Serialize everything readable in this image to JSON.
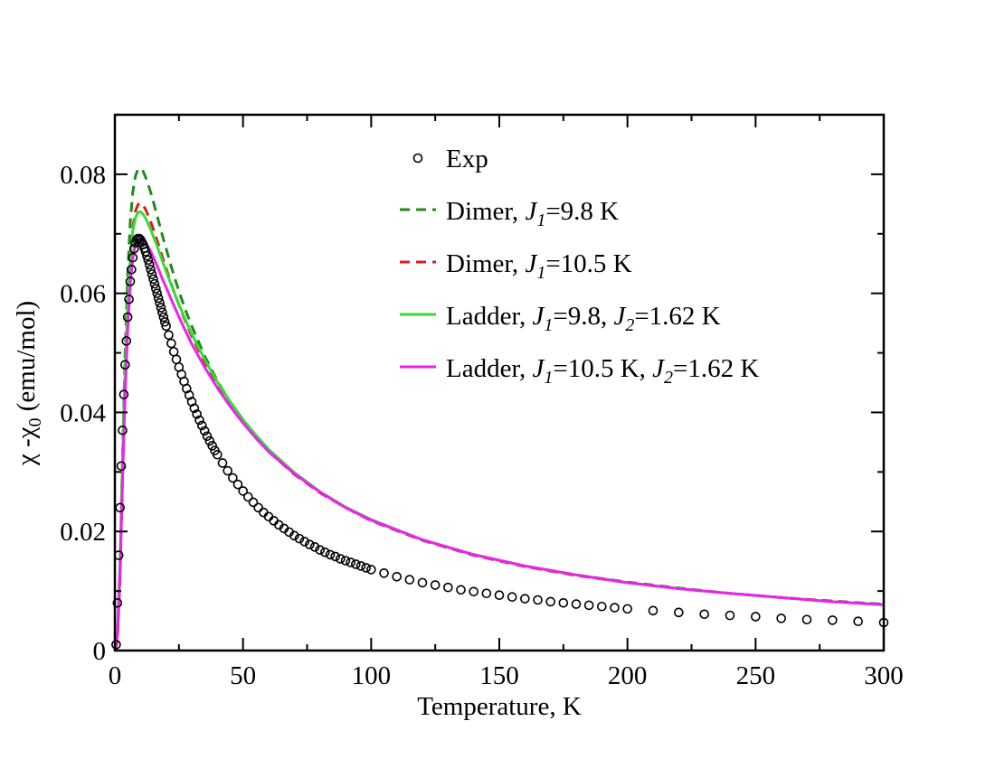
{
  "chart_data": {
    "type": "line",
    "title": "",
    "xlabel": "Temperature, K",
    "ylabel": {
      "main": "χ -χ",
      "sub": "0",
      "unit": " (emu/mol)"
    },
    "xlim": [
      0,
      300
    ],
    "ylim": [
      0,
      0.09
    ],
    "xticks": [
      0,
      50,
      100,
      150,
      200,
      250,
      300
    ],
    "xtick_labels": [
      "0",
      "50",
      "100",
      "150",
      "200",
      "250",
      "300"
    ],
    "yticks": [
      0,
      0.02,
      0.04,
      0.06,
      0.08
    ],
    "ytick_labels": [
      "0",
      "0.02",
      "0.04",
      "0.06",
      "0.08"
    ],
    "legend_position": "top-right",
    "series": [
      {
        "name": "Exp",
        "label": "Exp",
        "style": "markers",
        "color": "#000000",
        "x": [
          0.5,
          1,
          1.5,
          2,
          2.5,
          3,
          3.5,
          4,
          4.5,
          5,
          5.5,
          6,
          6.5,
          7,
          7.5,
          8,
          8.5,
          9,
          9.5,
          10,
          10.5,
          11,
          11.5,
          12,
          12.5,
          13,
          13.5,
          14,
          14.5,
          15,
          15.5,
          16,
          16.5,
          17,
          17.5,
          18,
          18.5,
          19,
          19.5,
          20,
          21,
          22,
          23,
          24,
          25,
          26,
          27,
          28,
          29,
          30,
          31,
          32,
          33,
          34,
          35,
          36,
          37,
          38,
          39,
          40,
          42,
          44,
          46,
          48,
          50,
          52,
          54,
          56,
          58,
          60,
          62,
          64,
          66,
          68,
          70,
          72,
          74,
          76,
          78,
          80,
          82,
          84,
          86,
          88,
          90,
          92,
          94,
          96,
          98,
          100,
          105,
          110,
          115,
          120,
          125,
          130,
          135,
          140,
          145,
          150,
          155,
          160,
          165,
          170,
          175,
          180,
          185,
          190,
          195,
          200,
          210,
          220,
          230,
          240,
          250,
          260,
          270,
          280,
          290,
          300
        ],
        "y": [
          0.001,
          0.008,
          0.016,
          0.024,
          0.031,
          0.037,
          0.043,
          0.048,
          0.052,
          0.056,
          0.059,
          0.062,
          0.064,
          0.066,
          0.0675,
          0.0685,
          0.069,
          0.0692,
          0.0692,
          0.069,
          0.0686,
          0.0682,
          0.0676,
          0.067,
          0.0663,
          0.0656,
          0.0648,
          0.064,
          0.0632,
          0.0624,
          0.0616,
          0.0608,
          0.06,
          0.0592,
          0.0584,
          0.0576,
          0.0568,
          0.056,
          0.0552,
          0.0545,
          0.053,
          0.0516,
          0.0502,
          0.0489,
          0.0476,
          0.0464,
          0.0452,
          0.044,
          0.0429,
          0.0418,
          0.0407,
          0.0397,
          0.0387,
          0.0378,
          0.0369,
          0.036,
          0.0352,
          0.0344,
          0.0336,
          0.0329,
          0.0315,
          0.0302,
          0.029,
          0.0279,
          0.0268,
          0.0258,
          0.0249,
          0.024,
          0.0232,
          0.0225,
          0.0218,
          0.0211,
          0.0205,
          0.0199,
          0.0193,
          0.0188,
          0.0183,
          0.0178,
          0.0174,
          0.0169,
          0.0165,
          0.0161,
          0.0158,
          0.0154,
          0.0151,
          0.0148,
          0.0145,
          0.0142,
          0.0139,
          0.0136,
          0.013,
          0.0124,
          0.0119,
          0.0114,
          0.011,
          0.0106,
          0.0102,
          0.0099,
          0.0096,
          0.0093,
          0.009,
          0.0087,
          0.0085,
          0.0082,
          0.008,
          0.0078,
          0.0076,
          0.0074,
          0.0072,
          0.007,
          0.0067,
          0.0064,
          0.0061,
          0.0059,
          0.0057,
          0.0054,
          0.0052,
          0.0051,
          0.0049,
          0.0047
        ]
      },
      {
        "name": "dimer-9.8",
        "label_parts": [
          "Dimer, ",
          "J",
          "1",
          "=9.8 K"
        ],
        "style": "dashed",
        "color": "#1e8b1e",
        "x": [
          0,
          1,
          2,
          3,
          4,
          5,
          6,
          7,
          8,
          9,
          10,
          11,
          12,
          13,
          14,
          15,
          16,
          17,
          18,
          19,
          20,
          22,
          24,
          26,
          28,
          30,
          35,
          40,
          45,
          50,
          55,
          60,
          70,
          80,
          90,
          100,
          120,
          140,
          160,
          180,
          200,
          220,
          240,
          260,
          280,
          300
        ],
        "y": [
          0.0,
          0.002,
          0.014,
          0.033,
          0.05,
          0.063,
          0.072,
          0.077,
          0.0797,
          0.0808,
          0.081,
          0.0805,
          0.0795,
          0.0783,
          0.0769,
          0.0754,
          0.0738,
          0.0722,
          0.0706,
          0.069,
          0.0675,
          0.0645,
          0.0617,
          0.0591,
          0.0567,
          0.0545,
          0.0495,
          0.0453,
          0.0417,
          0.0386,
          0.036,
          0.0336,
          0.0297,
          0.0266,
          0.0241,
          0.0219,
          0.0186,
          0.0161,
          0.0142,
          0.0127,
          0.0115,
          0.0105,
          0.0096,
          0.0089,
          0.0083,
          0.0078
        ]
      },
      {
        "name": "dimer-10.5",
        "label_parts": [
          "Dimer, ",
          "J",
          "1",
          "=10.5 K"
        ],
        "style": "dashed",
        "color": "#d42020",
        "x": [
          0,
          1,
          2,
          3,
          4,
          5,
          6,
          7,
          8,
          9,
          10,
          11,
          12,
          13,
          14,
          15,
          16,
          17,
          18,
          19,
          20,
          22,
          24,
          26,
          28,
          30,
          35,
          40,
          45,
          50,
          55,
          60,
          70,
          80,
          90,
          100,
          120,
          140,
          160,
          180,
          200,
          220,
          240,
          260,
          280,
          300
        ],
        "y": [
          0.0,
          0.0015,
          0.012,
          0.029,
          0.045,
          0.057,
          0.066,
          0.071,
          0.0738,
          0.0749,
          0.0752,
          0.0748,
          0.0741,
          0.0731,
          0.072,
          0.0708,
          0.0695,
          0.0682,
          0.0668,
          0.0655,
          0.0642,
          0.0616,
          0.0592,
          0.0569,
          0.0548,
          0.0528,
          0.0484,
          0.0445,
          0.0412,
          0.0383,
          0.0357,
          0.0334,
          0.0296,
          0.0265,
          0.024,
          0.0218,
          0.0185,
          0.016,
          0.0141,
          0.0126,
          0.0114,
          0.0104,
          0.0096,
          0.0089,
          0.0083,
          0.0077
        ]
      },
      {
        "name": "ladder-9.8",
        "label_parts": [
          "Ladder, ",
          "J",
          "1",
          "=9.8, ",
          "J",
          "2",
          "=1.62 K"
        ],
        "style": "solid",
        "color": "#33dd33",
        "x": [
          0,
          1,
          2,
          3,
          4,
          5,
          6,
          7,
          8,
          9,
          10,
          11,
          12,
          13,
          14,
          15,
          16,
          17,
          18,
          19,
          20,
          22,
          24,
          26,
          28,
          30,
          35,
          40,
          45,
          50,
          55,
          60,
          70,
          80,
          90,
          100,
          120,
          140,
          160,
          180,
          200,
          220,
          240,
          260,
          280,
          300
        ],
        "y": [
          0.0,
          0.003,
          0.015,
          0.032,
          0.047,
          0.058,
          0.066,
          0.0705,
          0.0727,
          0.0736,
          0.0737,
          0.0733,
          0.0726,
          0.0717,
          0.0707,
          0.0696,
          0.0685,
          0.0673,
          0.0661,
          0.0649,
          0.0637,
          0.0614,
          0.0592,
          0.0571,
          0.0551,
          0.0532,
          0.0489,
          0.0451,
          0.0418,
          0.0388,
          0.0362,
          0.0338,
          0.0299,
          0.0267,
          0.0241,
          0.022,
          0.0186,
          0.0161,
          0.0142,
          0.0127,
          0.0114,
          0.0104,
          0.0096,
          0.0089,
          0.0082,
          0.0077
        ]
      },
      {
        "name": "ladder-10.5",
        "label_parts": [
          "Ladder, ",
          "J",
          "1",
          "=10.5 K, ",
          "J",
          "2",
          "=1.62 K"
        ],
        "style": "solid",
        "color": "#ee22ee",
        "x": [
          0,
          1,
          2,
          3,
          4,
          5,
          6,
          7,
          8,
          9,
          10,
          11,
          12,
          13,
          14,
          15,
          16,
          17,
          18,
          19,
          20,
          22,
          24,
          26,
          28,
          30,
          35,
          40,
          45,
          50,
          55,
          60,
          70,
          80,
          90,
          100,
          120,
          140,
          160,
          180,
          200,
          220,
          240,
          260,
          280,
          300
        ],
        "y": [
          0.0,
          0.0025,
          0.013,
          0.029,
          0.043,
          0.054,
          0.0615,
          0.066,
          0.0682,
          0.069,
          0.0692,
          0.069,
          0.0685,
          0.0678,
          0.067,
          0.0661,
          0.0651,
          0.0641,
          0.063,
          0.062,
          0.061,
          0.059,
          0.057,
          0.0551,
          0.0533,
          0.0515,
          0.0476,
          0.0441,
          0.041,
          0.0382,
          0.0357,
          0.0334,
          0.0297,
          0.0266,
          0.024,
          0.0219,
          0.0186,
          0.0161,
          0.0142,
          0.0127,
          0.0114,
          0.0104,
          0.0096,
          0.0089,
          0.0082,
          0.0077
        ]
      }
    ]
  }
}
